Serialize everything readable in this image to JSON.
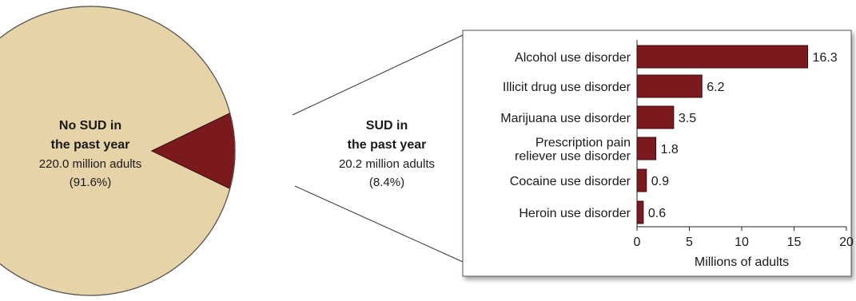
{
  "colors": {
    "no_sud": "#E6D3A8",
    "sud": "#7B1A1E",
    "bar": "#7B1A1E",
    "bar_stroke": "#3c0c0e",
    "text": "#1a1a1a",
    "panel_border": "#555555"
  },
  "chart_data": [
    {
      "type": "pie",
      "slices": [
        {
          "label_lines": [
            "No SUD in",
            "the past year"
          ],
          "detail": "220.0 million adults",
          "percent_text": "(91.6%)",
          "value": 220.0,
          "percent": 91.6
        },
        {
          "label_lines": [
            "SUD in",
            "the past year"
          ],
          "detail": "20.2 million adults",
          "percent_text": "(8.4%)",
          "value": 20.2,
          "percent": 8.4
        }
      ]
    },
    {
      "type": "bar",
      "orientation": "horizontal",
      "categories": [
        [
          "Alcohol use disorder"
        ],
        [
          "Illicit drug use disorder"
        ],
        [
          "Marijuana use disorder"
        ],
        [
          "Prescription pain",
          "reliever use disorder"
        ],
        [
          "Cocaine use disorder"
        ],
        [
          "Heroin use disorder"
        ]
      ],
      "values": [
        16.3,
        6.2,
        3.5,
        1.8,
        0.9,
        0.6
      ],
      "value_labels": [
        "16.3",
        "6.2",
        "3.5",
        "1.8",
        "0.9",
        "0.6"
      ],
      "xlabel": "Millions of adults",
      "xlim": [
        0,
        20
      ],
      "xticks": [
        "0",
        "5",
        "10",
        "15",
        "20"
      ],
      "grid": false
    }
  ]
}
